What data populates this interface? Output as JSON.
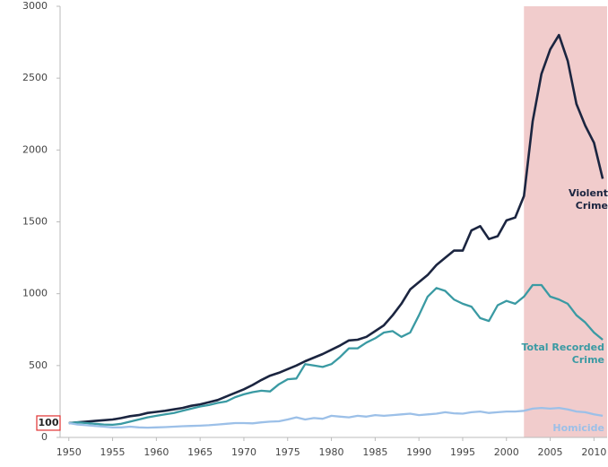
{
  "chart_data": {
    "type": "line",
    "x": [
      1950,
      1951,
      1952,
      1953,
      1954,
      1955,
      1956,
      1957,
      1958,
      1959,
      1960,
      1961,
      1962,
      1963,
      1964,
      1965,
      1966,
      1967,
      1968,
      1969,
      1970,
      1971,
      1972,
      1973,
      1974,
      1975,
      1976,
      1977,
      1978,
      1979,
      1980,
      1981,
      1982,
      1983,
      1984,
      1985,
      1986,
      1987,
      1988,
      1989,
      1990,
      1991,
      1992,
      1993,
      1994,
      1995,
      1996,
      1997,
      1998,
      1999,
      2000,
      2001,
      2002,
      2003,
      2004,
      2005,
      2006,
      2007,
      2008,
      2009,
      2010,
      2011
    ],
    "series": [
      {
        "name": "Violent Crime",
        "color": "#1b2540",
        "values": [
          100,
          105,
          110,
          115,
          120,
          125,
          135,
          148,
          155,
          170,
          178,
          185,
          195,
          205,
          220,
          230,
          245,
          260,
          285,
          310,
          335,
          365,
          400,
          430,
          450,
          475,
          500,
          530,
          555,
          580,
          610,
          640,
          675,
          680,
          700,
          740,
          780,
          850,
          930,
          1030,
          1080,
          1130,
          1200,
          1250,
          1300,
          1300,
          1440,
          1470,
          1380,
          1400,
          1510,
          1530,
          1680,
          2200,
          2530,
          2700,
          2800,
          2620,
          2320,
          2170,
          2050,
          1800
        ]
      },
      {
        "name": "Total Recorded Crime",
        "color": "#3a9aa3",
        "values": [
          100,
          105,
          100,
          95,
          90,
          88,
          95,
          110,
          125,
          140,
          150,
          160,
          170,
          185,
          200,
          215,
          225,
          240,
          250,
          280,
          300,
          315,
          325,
          320,
          370,
          405,
          410,
          510,
          500,
          490,
          510,
          560,
          620,
          620,
          660,
          690,
          730,
          740,
          700,
          730,
          850,
          980,
          1040,
          1020,
          960,
          930,
          910,
          830,
          810,
          920,
          950,
          930,
          980,
          1060,
          1060,
          980,
          960,
          930,
          850,
          800,
          730,
          680
        ]
      },
      {
        "name": "Homicide",
        "color": "#9cc0e8",
        "values": [
          100,
          90,
          85,
          80,
          75,
          70,
          70,
          75,
          70,
          68,
          70,
          72,
          75,
          78,
          80,
          82,
          85,
          90,
          95,
          100,
          100,
          98,
          105,
          110,
          112,
          125,
          140,
          125,
          135,
          130,
          150,
          145,
          140,
          150,
          145,
          155,
          150,
          155,
          160,
          165,
          155,
          160,
          165,
          175,
          168,
          165,
          175,
          180,
          170,
          175,
          180,
          180,
          185,
          200,
          205,
          200,
          205,
          195,
          180,
          175,
          160,
          150
        ]
      }
    ],
    "xlim": [
      1949,
      2011.5
    ],
    "ylim": [
      0,
      3000
    ],
    "xticks": [
      1950,
      1955,
      1960,
      1965,
      1970,
      1975,
      1980,
      1985,
      1990,
      1995,
      2000,
      2005,
      2010
    ],
    "yticks": [
      0,
      500,
      1000,
      1500,
      2000,
      2500,
      3000
    ],
    "reference_label": {
      "value": 100,
      "label": "100",
      "color": "#e03030"
    },
    "shaded_from": 2002,
    "shade_color": "#f1cccc",
    "grid": false
  }
}
